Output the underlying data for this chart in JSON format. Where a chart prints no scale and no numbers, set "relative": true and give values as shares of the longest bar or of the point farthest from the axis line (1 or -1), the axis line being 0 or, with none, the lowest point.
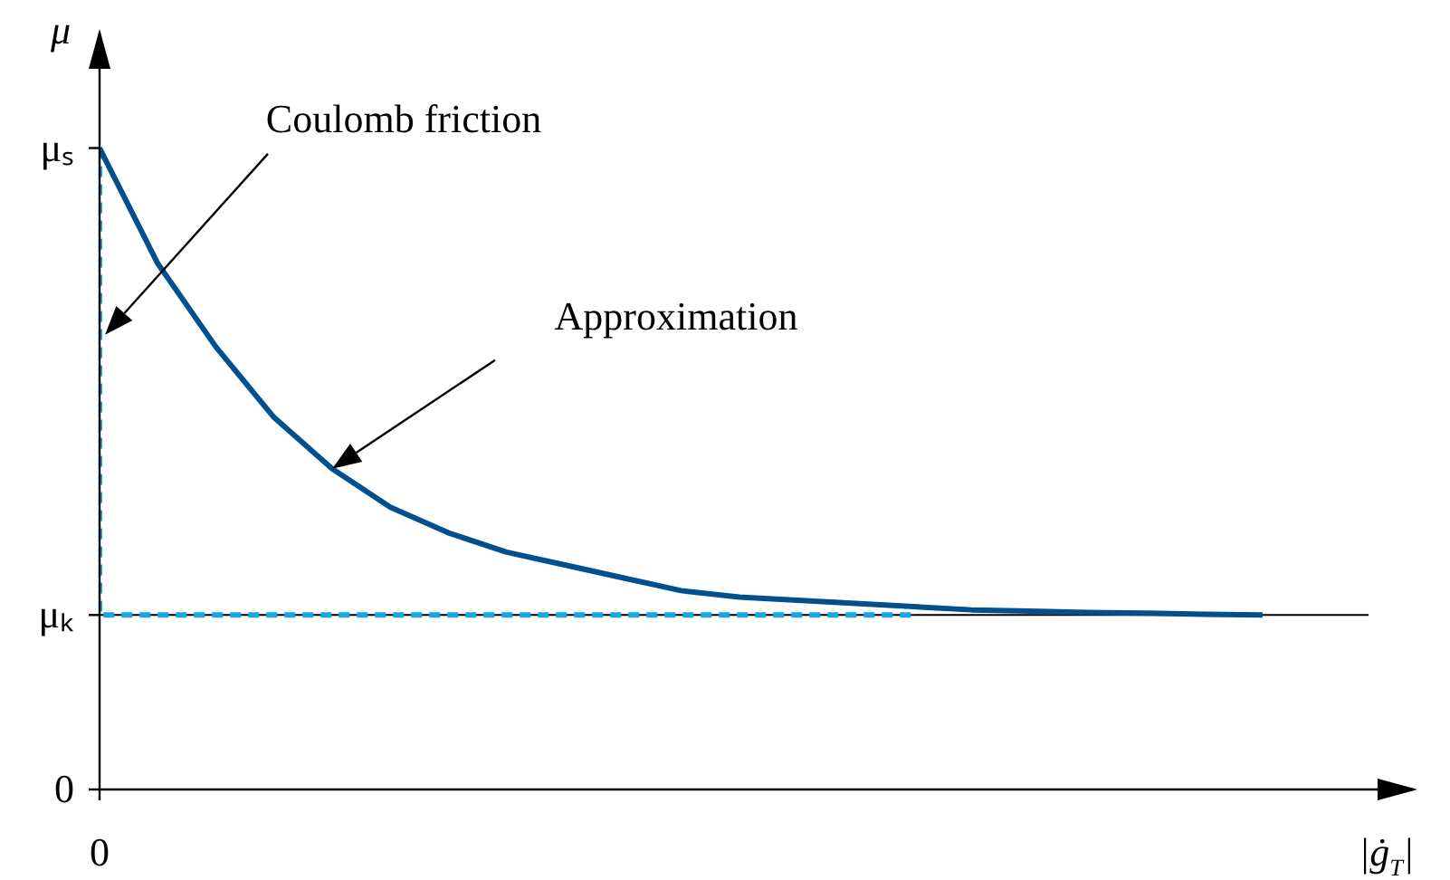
{
  "chart_data": {
    "type": "line",
    "relative": true,
    "xlabel": "|ġ$_{T}$|",
    "ylabel": "μ",
    "categories": [
      null,
      null,
      null,
      null,
      null,
      null,
      null,
      null,
      null,
      null,
      null,
      null,
      null,
      null,
      null,
      null,
      null,
      null,
      null,
      null,
      null
    ],
    "series": [
      {
        "color": "#00508f",
        "line_style": "solid",
        "values": [
          1,
          0.82,
          0.69,
          0.58,
          0.5,
          0.44,
          0.4,
          0.37,
          0.35,
          0.33,
          0.31,
          0.3,
          0.295,
          0.29,
          0.285,
          0.28,
          0.278,
          0.276,
          0.275,
          0.273,
          0.272
        ]
      },
      {
        "type": "step",
        "color": "#1aa7e0",
        "line_style": "dashed",
        "values": [
          1,
          0.272,
          0.272,
          0.272,
          0.272,
          0.272,
          0.272,
          0.272,
          0.272,
          0.272,
          0.272,
          0.272,
          0.272,
          0.272,
          0.272,
          null,
          null,
          null,
          null,
          null,
          null
        ]
      }
    ],
    "ref_lines": [
      {
        "axis": "y",
        "value": 0.272,
        "label": "μₖ",
        "color": "#000000",
        "line_style": "solid"
      }
    ],
    "annotations": [
      "Coulomb friction",
      "Approximation",
      "μₛ",
      "0",
      "0"
    ],
    "legend": false,
    "marker": "none"
  }
}
